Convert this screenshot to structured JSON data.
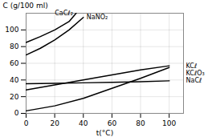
{
  "chart_data": {
    "type": "line",
    "series": [
      {
        "name": "CaCℓ₂",
        "color": "black",
        "x": [
          0,
          10,
          20,
          30,
          35
        ],
        "values": [
          85,
          92,
          100,
          110,
          120
        ]
      },
      {
        "name": "NaNO₂",
        "color": "black",
        "x": [
          0,
          10,
          20,
          30,
          40
        ],
        "values": [
          70,
          78,
          88,
          100,
          115
        ]
      },
      {
        "name": "KCℓ",
        "color": "black",
        "x": [
          0,
          20,
          40,
          60,
          80,
          100
        ],
        "values": [
          28,
          34,
          40,
          46,
          52,
          57
        ]
      },
      {
        "name": "KCℓO₃",
        "color": "black",
        "x": [
          0,
          20,
          40,
          60,
          80,
          100
        ],
        "values": [
          3,
          9,
          18,
          30,
          42,
          55
        ]
      },
      {
        "name": "NaCℓ",
        "color": "black",
        "x": [
          0,
          20,
          40,
          60,
          80,
          100
        ],
        "values": [
          35.5,
          36.0,
          36.6,
          37.2,
          38.0,
          39.0
        ]
      }
    ],
    "xlabel": "t(°C)",
    "ylabel": "C (g/100 ml)",
    "xlim": [
      0,
      110
    ],
    "ylim": [
      0,
      120
    ],
    "xticks": [
      0,
      20,
      40,
      60,
      80,
      100
    ],
    "yticks": [
      0,
      20,
      40,
      60,
      80,
      100
    ],
    "grid": true
  }
}
